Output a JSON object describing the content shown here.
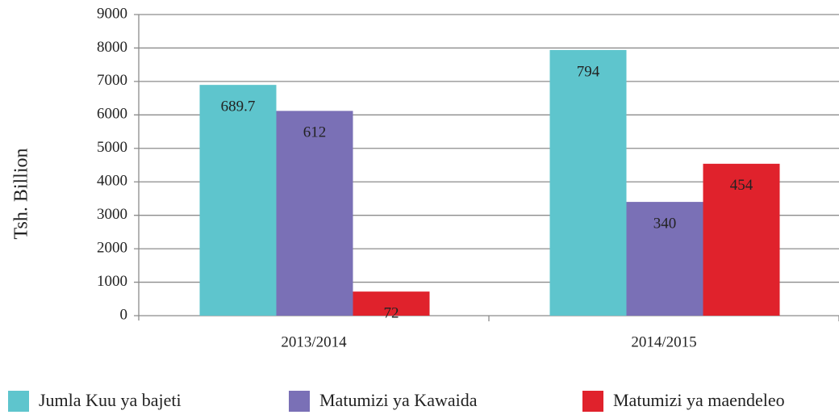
{
  "chart_data": {
    "type": "bar",
    "y_axis_label": "Tsh. Billion",
    "categories": [
      "2013/2014",
      "2014/2015"
    ],
    "series": [
      {
        "name": "Jumla Kuu ya bajeti",
        "color": "#5ec5cd",
        "values": [
          6897,
          7940
        ],
        "value_labels": [
          "689.7",
          "794"
        ]
      },
      {
        "name": "Matumizi ya Kawaida",
        "color": "#7a70b6",
        "values": [
          6120,
          3400
        ],
        "value_labels": [
          "612",
          "340"
        ]
      },
      {
        "name": "Matumizi ya maendeleo",
        "color": "#e0222c",
        "values": [
          720,
          4540
        ],
        "value_labels": [
          "72",
          "454"
        ]
      }
    ],
    "ylim": [
      0,
      9000
    ],
    "yticks": [
      0,
      1000,
      2000,
      3000,
      4000,
      5000,
      6000,
      7000,
      8000,
      9000
    ],
    "grid": true
  }
}
